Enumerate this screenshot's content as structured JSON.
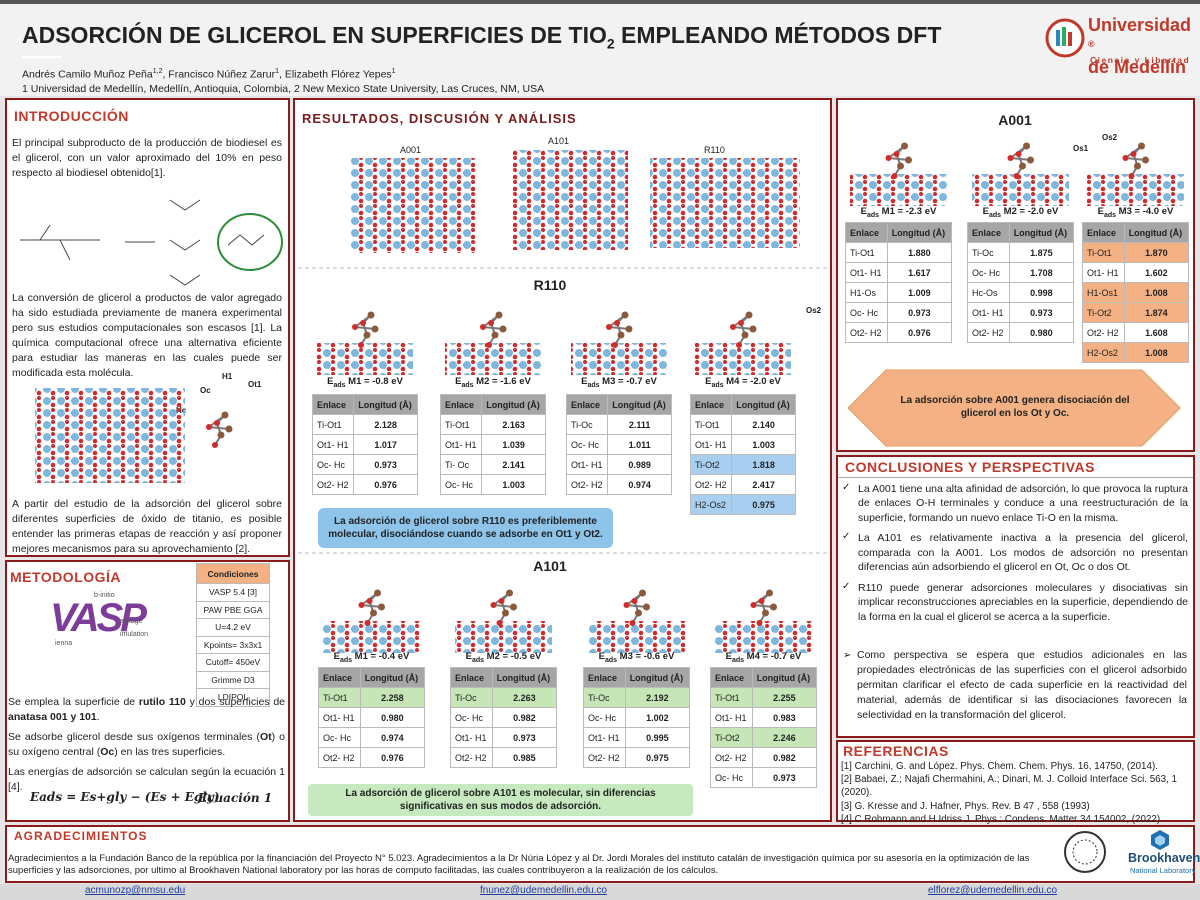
{
  "header": {
    "title_main": "ADSORCIÓN DE GLICEROL EN SUPERFICIES DE TIO",
    "title_sub": "2",
    "title_rest": " EMPLEANDO MÉTODOS DFT",
    "authors": [
      {
        "name": "Andrés Camilo Muñoz Peña",
        "sup": "1,2"
      },
      {
        "name": ", Francisco Núñez Zarur",
        "sup": "1"
      },
      {
        "name": ", Elizabeth Flórez Yepes",
        "sup": "1"
      }
    ],
    "affiliation": "1 Universidad de Medellín, Medellín, Antioquia, Colombia, 2 New Mexico State University, Las Cruces, NM, USA",
    "logo": {
      "line1": "Universidad",
      "line2": "de Medellín",
      "tagline": "Ciencia y Libertad",
      "mark": "®"
    }
  },
  "table_header": [
    "Enlace",
    "Longitud (Å)"
  ],
  "energy_symbol": "E",
  "energy_sub": "ads",
  "intro": {
    "title": "INTRODUCCIÓN",
    "paragraphs": [
      "El principal subproducto de la producción de biodiesel es el glicerol, con un valor aproximado del 10% en peso respecto al biodiesel obtenido[1].",
      "La conversión de glicerol a productos de valor agregado ha sido estudiada previamente de manera experimental pero sus estudios computacionales son escasos [1]. La química computacional ofrece una alternativa eficiente para estudiar las maneras en las cuales puede ser modificada esta molécula.",
      "A partir del estudio de la adsorción del glicerol sobre diferentes superficies de óxido de titanio, es posible entender las primeras etapas de reacción y así proponer mejores mecanismos para su aprovechamiento [2]."
    ],
    "figure_labels": [
      "Oc",
      "H1",
      "Ot1",
      "Hc"
    ]
  },
  "method": {
    "title": "METODOLOGÍA",
    "logo": {
      "letters": "VASP",
      "words": [
        "b-initio",
        "ackage",
        "ienna",
        "imulation"
      ]
    },
    "conditions": {
      "title": "Condiciones",
      "rows": [
        "VASP 5.4 [3]",
        "PAW PBE GGA",
        "U=4.2 eV",
        "Kpoints= 3x3x1",
        "Cutoff= 450eV",
        "Grimme D3",
        "LDIPOL"
      ]
    },
    "paragraphs": [
      [
        {
          "text": "Se emplea la superficie de "
        },
        {
          "text": "rutilo 110",
          "bold": true
        },
        {
          "text": " y dos superficies de "
        },
        {
          "text": "anatasa 001 y 101",
          "bold": true
        },
        {
          "text": "."
        }
      ],
      [
        {
          "text": "Se adsorbe glicerol desde sus oxígenos terminales ("
        },
        {
          "text": "Ot",
          "bold": true
        },
        {
          "text": ") o su oxígeno central ("
        },
        {
          "text": "Oc",
          "bold": true
        },
        {
          "text": ") en las tres superficies."
        }
      ],
      [
        {
          "text": "Las energías de adsorción se calculan según la ecuación 1 [4]."
        }
      ]
    ],
    "equation": "Eads = Es+gly − (Es + Egly)",
    "equation_label": "Ecuación 1"
  },
  "results": {
    "title": "RESULTADOS, DISCUSIÓN Y ANÁLISIS",
    "surfaces": [
      "A001",
      "A101",
      "R110"
    ],
    "r110": {
      "title": "R110",
      "image_labels": [
        "Os2"
      ],
      "cases": [
        {
          "label": " M1 = -0.8 eV",
          "rows": [
            {
              "bond": "Ti-Ot1",
              "length": "2.128"
            },
            {
              "bond": "Ot1- H1",
              "length": "1.017"
            },
            {
              "bond": "Oc- Hc",
              "length": "0.973"
            },
            {
              "bond": "Ot2- H2",
              "length": "0.976"
            }
          ]
        },
        {
          "label": " M2 = -1.6 eV",
          "rows": [
            {
              "bond": "Ti-Ot1",
              "length": "2.163"
            },
            {
              "bond": "Ot1- H1",
              "length": "1.039"
            },
            {
              "bond": "Ti- Oc",
              "length": "2.141"
            },
            {
              "bond": "Oc- Hc",
              "length": "1.003"
            }
          ]
        },
        {
          "label": " M3 = -0.7 eV",
          "rows": [
            {
              "bond": "Ti-Oc",
              "length": "2.111"
            },
            {
              "bond": "Oc- Hc",
              "length": "1.011"
            },
            {
              "bond": "Ot1- H1",
              "length": "0.989"
            },
            {
              "bond": "Ot2- H2",
              "length": "0.974"
            }
          ]
        },
        {
          "label": " M4 = -2.0 eV",
          "rows": [
            {
              "bond": "Ti-Ot1",
              "length": "2.140"
            },
            {
              "bond": "Ot1- H1",
              "length": "1.003"
            },
            {
              "bond": "Ti-Ot2",
              "length": "1.818",
              "color": "#a9cff0"
            },
            {
              "bond": "Ot2- H2",
              "length": "2.417"
            },
            {
              "bond": "H2-Os2",
              "length": "0.975",
              "color": "#a9cff0"
            }
          ]
        }
      ],
      "note": "La adsorción de glicerol sobre R110 es preferiblemente molecular, disociándose cuando se adsorbe en Ot1 y Ot2."
    },
    "a101": {
      "title": "A101",
      "cases": [
        {
          "label": " M1 = -0.4 eV",
          "rows": [
            {
              "bond": "Ti-Ot1",
              "length": "2.258",
              "color": "#c6e6b8"
            },
            {
              "bond": "Ot1- H1",
              "length": "0.980"
            },
            {
              "bond": "Oc- Hc",
              "length": "0.974"
            },
            {
              "bond": "Ot2- H2",
              "length": "0.976"
            }
          ]
        },
        {
          "label": " M2 = -0.5 eV",
          "rows": [
            {
              "bond": "Ti-Oc",
              "length": "2.263",
              "color": "#c6e6b8"
            },
            {
              "bond": "Oc- Hc",
              "length": "0.982"
            },
            {
              "bond": "Ot1- H1",
              "length": "0.973"
            },
            {
              "bond": "Ot2- H2",
              "length": "0.985"
            }
          ]
        },
        {
          "label": " M3 = -0.6 eV",
          "rows": [
            {
              "bond": "Ti-Oc",
              "length": "2.192",
              "color": "#c6e6b8"
            },
            {
              "bond": "Oc- Hc",
              "length": "1.002"
            },
            {
              "bond": "Ot1- H1",
              "length": "0.995"
            },
            {
              "bond": "Ot2- H2",
              "length": "0.975"
            }
          ]
        },
        {
          "label": " M4 = -0.7 eV",
          "rows": [
            {
              "bond": "Ti-Ot1",
              "length": "2.255",
              "color": "#c6e6b8"
            },
            {
              "bond": "Ot1- H1",
              "length": "0.983"
            },
            {
              "bond": "Ti-Ot2",
              "length": "2.246",
              "color": "#c6e6b8"
            },
            {
              "bond": "Ot2- H2",
              "length": "0.982"
            },
            {
              "bond": "Oc- Hc",
              "length": "0.973"
            }
          ]
        }
      ],
      "note": "La adsorción de glicerol sobre A101 es molecular, sin diferencias significativas en sus modos de adsorción."
    }
  },
  "a001": {
    "title": "A001",
    "image_labels": [
      "Os1",
      "Os2"
    ],
    "cases": [
      {
        "label": " M1 = -2.3 eV",
        "rows": [
          {
            "bond": "Ti-Ot1",
            "length": "1.880"
          },
          {
            "bond": "Ot1- H1",
            "length": "1.617"
          },
          {
            "bond": "H1-Os",
            "length": "1.009"
          },
          {
            "bond": "Oc- Hc",
            "length": "0.973"
          },
          {
            "bond": "Ot2- H2",
            "length": "0.976"
          }
        ]
      },
      {
        "label": " M2 = -2.0 eV",
        "rows": [
          {
            "bond": "Ti-Oc",
            "length": "1.875"
          },
          {
            "bond": "Oc- Hc",
            "length": "1.708"
          },
          {
            "bond": "Hc-Os",
            "length": "0.998"
          },
          {
            "bond": "Ot1- H1",
            "length": "0.973"
          },
          {
            "bond": "Ot2- H2",
            "length": "0.980"
          }
        ]
      },
      {
        "label": " M3 = -4.0 eV",
        "rows": [
          {
            "bond": "Ti-Ot1",
            "length": "1.870",
            "color": "#f4b183"
          },
          {
            "bond": "Ot1- H1",
            "length": "1.602"
          },
          {
            "bond": "H1-Os1",
            "length": "1.008",
            "color": "#f4b183"
          },
          {
            "bond": "Ti-Ot2",
            "length": "1.874",
            "color": "#f4b183"
          },
          {
            "bond": "Ot2- H2",
            "length": "1.608"
          },
          {
            "bond": "H2-Os2",
            "length": "1.008",
            "color": "#f4b183"
          }
        ]
      }
    ],
    "note": "La adsorción sobre A001 genera disociación del glicerol en los Ot y Oc."
  },
  "conclusions": {
    "title": "CONCLUSIONES Y PERSPECTIVAS",
    "items": [
      "La A001 tiene una alta afinidad de adsorción, lo que provoca la ruptura de enlaces O-H terminales y conduce a una reestructuración de la superficie, formando un nuevo enlace Ti-O en la misma.",
      "La A101 es relativamente inactiva a la presencia del glicerol, comparada con la A001. Los modos de adsorción no presentan diferencias aún adsorbiendo el glicerol en Ot, Oc o dos Ot.",
      "R110 puede generar adsorciones moleculares y disociativas sin implicar reconstrucciones apreciables en la superficie, dependiendo de la forma en la cual el glicerol se acerca a la superficie."
    ],
    "perspective": "Como perspectiva se espera que estudios adicionales en las propiedades electrónicas de las superficies con el glicerol adsorbido permitan clarificar el efecto de cada superficie en la reactividad del material, además de identificar si las disociaciones favorecen la selectividad en la transformación del glicerol."
  },
  "references": {
    "title": "REFERENCIAS",
    "items": [
      "[1] Carchini, G. and López. Phys. Chem. Chem. Phys. 16, 14750, (2014).",
      "[2] Babaei, Z.; Najafi Chermahini, A.; Dinari, M. J. Colloid Interface Sci. 563, 1 (2020).",
      "[3] G. Kresse and J. Hafner, Phys. Rev. B 47 , 558 (1993)",
      "[4] C Rohmann and H Idriss J. Phys.: Condens. Matter 34 154002, (2022)"
    ]
  },
  "acknowledgments": {
    "title": "AGRADECIMIENTOS",
    "text": "Agradecimientos a la Fundación Banco de la república por la financiación del Proyecto N° 5.023. Agradecimientos a la Dr Núria López y al Dr. Jordi Morales del instituto catalán de investigación química por su asesoría en la optimización de las superficies y las adsorciones, por ultimo al Brookhaven National laboratory por las horas de computo facilitadas, las cuales contribuyeron a la realización de los cálculos.",
    "brookhaven": {
      "name": "Brookhaven",
      "sub": "National Laboratory"
    }
  },
  "footer": {
    "emails": [
      "acmunozp@nmsu.edu",
      "fnunez@udemedellin.edu.co",
      "elflorez@udemedellin.edu.co"
    ]
  }
}
